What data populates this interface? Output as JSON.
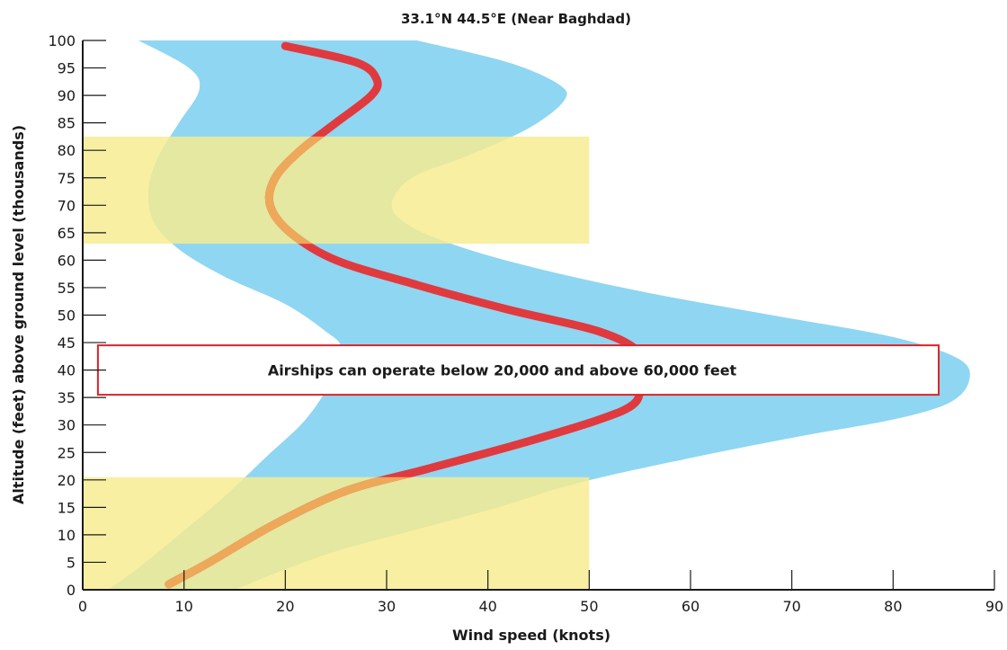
{
  "chart_data": {
    "type": "line",
    "title": "33.1°N 44.5°E (Near Baghdad)",
    "xlabel": "Wind speed (knots)",
    "ylabel": "Altitude (feet) above ground level (thousands)",
    "xlim": [
      0,
      90
    ],
    "ylim": [
      0,
      100
    ],
    "x_ticks": [
      0,
      10,
      20,
      30,
      40,
      50,
      60,
      70,
      80,
      90
    ],
    "y_ticks": [
      0,
      5,
      10,
      15,
      20,
      25,
      30,
      35,
      40,
      45,
      50,
      55,
      60,
      65,
      70,
      75,
      80,
      85,
      90,
      95,
      100
    ],
    "grid": false,
    "operating_bands": [
      {
        "altitude_range": [
          0,
          20.5
        ],
        "wind_speed_range": [
          0,
          50
        ],
        "color": "#f7eb8f"
      },
      {
        "altitude_range": [
          63,
          82.5
        ],
        "wind_speed_range": [
          0,
          50
        ],
        "color": "#f7eb8f"
      }
    ],
    "variability_band": {
      "color": "#8fd6f2",
      "left_edge": [
        {
          "x": 2.5,
          "y": 0
        },
        {
          "x": 5.5,
          "y": 4
        },
        {
          "x": 9.5,
          "y": 10
        },
        {
          "x": 14,
          "y": 17
        },
        {
          "x": 18,
          "y": 24
        },
        {
          "x": 22,
          "y": 31
        },
        {
          "x": 24.5,
          "y": 38
        },
        {
          "x": 25.5,
          "y": 44
        },
        {
          "x": 24,
          "y": 47
        },
        {
          "x": 20,
          "y": 52
        },
        {
          "x": 14,
          "y": 57
        },
        {
          "x": 9.5,
          "y": 62
        },
        {
          "x": 7,
          "y": 67
        },
        {
          "x": 6.5,
          "y": 73
        },
        {
          "x": 7.5,
          "y": 79
        },
        {
          "x": 9.5,
          "y": 85
        },
        {
          "x": 11.5,
          "y": 91
        },
        {
          "x": 10.5,
          "y": 95
        },
        {
          "x": 5.5,
          "y": 100
        }
      ],
      "right_edge": [
        {
          "x": 15,
          "y": 0
        },
        {
          "x": 19,
          "y": 3
        },
        {
          "x": 25,
          "y": 7
        },
        {
          "x": 33,
          "y": 11
        },
        {
          "x": 41,
          "y": 15
        },
        {
          "x": 49,
          "y": 19.5
        },
        {
          "x": 60,
          "y": 24
        },
        {
          "x": 71,
          "y": 28
        },
        {
          "x": 80,
          "y": 31
        },
        {
          "x": 85.5,
          "y": 34
        },
        {
          "x": 87.5,
          "y": 38
        },
        {
          "x": 86.5,
          "y": 42
        },
        {
          "x": 80,
          "y": 46
        },
        {
          "x": 68,
          "y": 50
        },
        {
          "x": 56,
          "y": 54
        },
        {
          "x": 46,
          "y": 58
        },
        {
          "x": 38,
          "y": 62
        },
        {
          "x": 32.5,
          "y": 66
        },
        {
          "x": 30.5,
          "y": 70
        },
        {
          "x": 32.5,
          "y": 75
        },
        {
          "x": 38,
          "y": 79
        },
        {
          "x": 44,
          "y": 84
        },
        {
          "x": 47.5,
          "y": 89
        },
        {
          "x": 47,
          "y": 92
        },
        {
          "x": 42,
          "y": 96
        },
        {
          "x": 33,
          "y": 100
        }
      ]
    },
    "series": [
      {
        "values": [
          {
            "x": 8.5,
            "y": 1
          },
          {
            "x": 12.5,
            "y": 5
          },
          {
            "x": 19,
            "y": 12
          },
          {
            "x": 26,
            "y": 18
          },
          {
            "x": 34,
            "y": 22
          },
          {
            "x": 43,
            "y": 26.5
          },
          {
            "x": 51,
            "y": 31
          },
          {
            "x": 54.5,
            "y": 34
          },
          {
            "x": 55,
            "y": 38
          },
          {
            "x": 55,
            "y": 43
          },
          {
            "x": 51,
            "y": 47
          },
          {
            "x": 42,
            "y": 51
          },
          {
            "x": 33,
            "y": 55.5
          },
          {
            "x": 25,
            "y": 60
          },
          {
            "x": 20.5,
            "y": 65
          },
          {
            "x": 18.5,
            "y": 70
          },
          {
            "x": 19,
            "y": 75
          },
          {
            "x": 21.5,
            "y": 80
          },
          {
            "x": 25,
            "y": 85
          },
          {
            "x": 28.5,
            "y": 90
          },
          {
            "x": 29,
            "y": 93
          },
          {
            "x": 27,
            "y": 96
          },
          {
            "x": 20,
            "y": 99
          }
        ],
        "color": "#e03a3e",
        "highlight_color": "#eda85a"
      }
    ],
    "annotation": {
      "text": "Airships can operate below 20,000 and above 60,000 feet",
      "box": {
        "x_range": [
          1.5,
          84.5
        ],
        "y_range": [
          35.5,
          44.5
        ]
      },
      "border_color": "#d9252b"
    }
  }
}
